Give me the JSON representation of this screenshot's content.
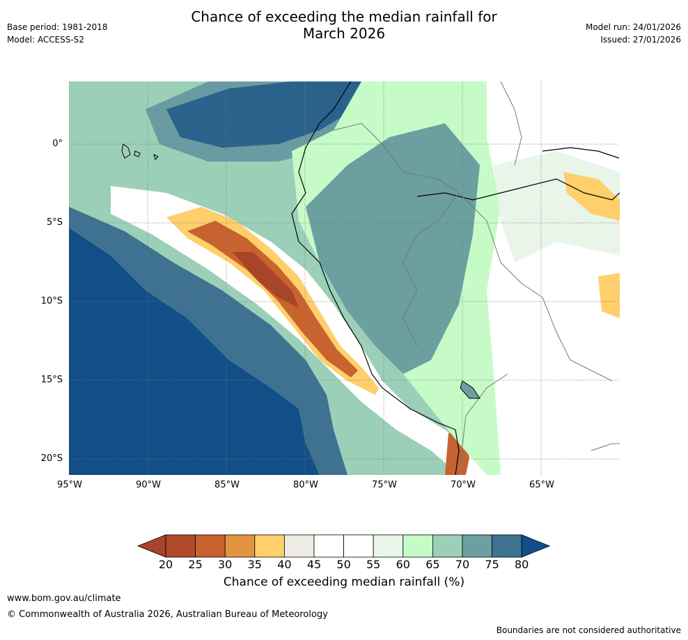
{
  "header": {
    "title_line1": "Chance of exceeding the median rainfall for",
    "title_line2": "March 2026",
    "base_period": "Base period: 1981-2018",
    "model": "Model: ACCESS-S2",
    "model_run": "Model run: 24/01/2026",
    "issued": "Issued: 27/01/2026"
  },
  "map": {
    "lat_labels": [
      "0°",
      "5°S",
      "10°S",
      "15°S",
      "20°S"
    ],
    "lon_labels": [
      "95°W",
      "90°W",
      "85°W",
      "80°W",
      "75°W",
      "70°W",
      "65°W"
    ],
    "lat_values": [
      0,
      -5,
      -10,
      -15,
      -20
    ],
    "lon_values": [
      -95,
      -90,
      -85,
      -80,
      -75,
      -70,
      -65
    ],
    "extent": {
      "lon_min": -95,
      "lon_max": -60,
      "lat_min": -21,
      "lat_max": 4
    }
  },
  "colorbar": {
    "title": "Chance of exceeding median rainfall (%)",
    "ticks": [
      "20",
      "25",
      "30",
      "35",
      "40",
      "45",
      "50",
      "55",
      "60",
      "65",
      "70",
      "75",
      "80"
    ],
    "colors": [
      "#a84428",
      "#b04a28",
      "#c8622e",
      "#e29342",
      "#fecf6a",
      "#eeebe5",
      "#ffffff",
      "#ffffff",
      "#e9f5e9",
      "#c6fbc8",
      "#9ccfb8",
      "#6c9fa0",
      "#3f7290",
      "#124e88"
    ]
  },
  "footer": {
    "url": "www.bom.gov.au/climate",
    "copyright": "© Commonwealth of Australia 2026, Australian Bureau of Meteorology",
    "disclaimer": "Boundaries are not considered authoritative"
  }
}
